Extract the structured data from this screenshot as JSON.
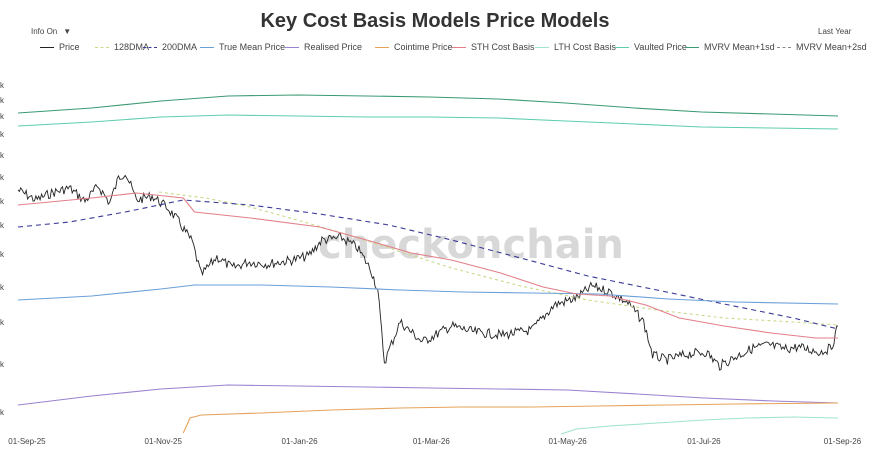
{
  "header": {
    "title": "Key Cost Basis Models Price Models"
  },
  "controls": {
    "info_label": "Info On",
    "range_label": "Last Year"
  },
  "watermark": "checkonchain",
  "chart_data": {
    "type": "line",
    "x_start": "2025-08-28",
    "x_end": "2026-08-30",
    "x_ticks": [
      {
        "date": "2025-09-01",
        "label": "01-Sep-25"
      },
      {
        "date": "2025-11-01",
        "label": "01-Nov-25"
      },
      {
        "date": "2026-01-01",
        "label": "01-Jan-26"
      },
      {
        "date": "2026-03-01",
        "label": "01-Mar-26"
      },
      {
        "date": "2026-05-01",
        "label": "01-May-26"
      },
      {
        "date": "2026-07-01",
        "label": "01-Jul-26"
      },
      {
        "date": "2026-09-01",
        "label": "01-Sep-26"
      }
    ],
    "y_ticks": [
      "k",
      "k",
      "k",
      "k",
      "k",
      "k",
      "k",
      "k",
      "k",
      "k",
      "k",
      "k",
      "k"
    ],
    "series": [
      {
        "name": "Price",
        "color": "#222222",
        "dash": "solid",
        "noise": 2.2,
        "points": [
          [
            "2025-08-28",
            190
          ],
          [
            "2025-09-05",
            200
          ],
          [
            "2025-09-12",
            193
          ],
          [
            "2025-09-20",
            188
          ],
          [
            "2025-09-27",
            201
          ],
          [
            "2025-10-03",
            186
          ],
          [
            "2025-10-08",
            203
          ],
          [
            "2025-10-12",
            178
          ],
          [
            "2025-10-15",
            172
          ],
          [
            "2025-10-20",
            200
          ],
          [
            "2025-10-27",
            196
          ],
          [
            "2025-11-03",
            208
          ],
          [
            "2025-11-08",
            222
          ],
          [
            "2025-11-14",
            242
          ],
          [
            "2025-11-18",
            275
          ],
          [
            "2025-11-25",
            257
          ],
          [
            "2025-12-02",
            268
          ],
          [
            "2025-12-09",
            262
          ],
          [
            "2025-12-18",
            264
          ],
          [
            "2025-12-29",
            260
          ],
          [
            "2026-01-05",
            256
          ],
          [
            "2026-01-11",
            240
          ],
          [
            "2026-01-20",
            238
          ],
          [
            "2026-01-27",
            248
          ],
          [
            "2026-02-02",
            270
          ],
          [
            "2026-02-05",
            290
          ],
          [
            "2026-02-08",
            362
          ],
          [
            "2026-02-15",
            322
          ],
          [
            "2026-02-25",
            342
          ],
          [
            "2026-03-10",
            326
          ],
          [
            "2026-03-20",
            332
          ],
          [
            "2026-04-02",
            335
          ],
          [
            "2026-04-15",
            330
          ],
          [
            "2026-04-25",
            305
          ],
          [
            "2026-05-05",
            298
          ],
          [
            "2026-05-12",
            286
          ],
          [
            "2026-05-20",
            292
          ],
          [
            "2026-05-28",
            303
          ],
          [
            "2026-06-04",
            322
          ],
          [
            "2026-06-08",
            355
          ],
          [
            "2026-06-14",
            360
          ],
          [
            "2026-06-24",
            354
          ],
          [
            "2026-07-02",
            352
          ],
          [
            "2026-07-08",
            366
          ],
          [
            "2026-07-15",
            357
          ],
          [
            "2026-07-23",
            348
          ],
          [
            "2026-07-30",
            345
          ],
          [
            "2026-08-06",
            349
          ],
          [
            "2026-08-12",
            347
          ],
          [
            "2026-08-22",
            352
          ],
          [
            "2026-08-27",
            348
          ],
          [
            "2026-08-30",
            326
          ]
        ]
      },
      {
        "name": "128DMA",
        "color": "#c9d98a",
        "dash": "3,3",
        "noise": 0,
        "points": [
          [
            "2025-10-30",
            192
          ],
          [
            "2025-11-20",
            198
          ],
          [
            "2025-12-10",
            207
          ],
          [
            "2025-12-31",
            220
          ],
          [
            "2026-01-20",
            233
          ],
          [
            "2026-02-10",
            248
          ],
          [
            "2026-03-10",
            268
          ],
          [
            "2026-04-10",
            286
          ],
          [
            "2026-05-10",
            300
          ],
          [
            "2026-06-10",
            310
          ],
          [
            "2026-07-10",
            318
          ],
          [
            "2026-08-10",
            322
          ],
          [
            "2026-08-30",
            325
          ]
        ]
      },
      {
        "name": "200DMA",
        "color": "#3a3a99",
        "dash": "5,4",
        "noise": 0,
        "points": [
          [
            "2025-08-28",
            227
          ],
          [
            "2025-09-20",
            222
          ],
          [
            "2025-10-15",
            212
          ],
          [
            "2025-11-10",
            200
          ],
          [
            "2025-12-10",
            205
          ],
          [
            "2026-01-10",
            214
          ],
          [
            "2026-02-10",
            225
          ],
          [
            "2026-03-10",
            240
          ],
          [
            "2026-04-10",
            258
          ],
          [
            "2026-05-10",
            276
          ],
          [
            "2026-06-10",
            290
          ],
          [
            "2026-07-10",
            304
          ],
          [
            "2026-08-10",
            318
          ],
          [
            "2026-08-30",
            329
          ]
        ]
      },
      {
        "name": "True Mean Price",
        "color": "#6a9fd8",
        "dash": "solid",
        "noise": 0,
        "points": [
          [
            "2025-08-28",
            300
          ],
          [
            "2025-09-30",
            296
          ],
          [
            "2025-10-31",
            289
          ],
          [
            "2025-11-15",
            285
          ],
          [
            "2025-12-15",
            285
          ],
          [
            "2026-01-15",
            287
          ],
          [
            "2026-02-15",
            290
          ],
          [
            "2026-03-15",
            292
          ],
          [
            "2026-04-15",
            293
          ],
          [
            "2026-05-15",
            294
          ],
          [
            "2026-06-15",
            299
          ],
          [
            "2026-07-15",
            302
          ],
          [
            "2026-08-30",
            304
          ]
        ]
      },
      {
        "name": "Realised Price",
        "color": "#9a82d0",
        "dash": "solid",
        "noise": 0,
        "points": [
          [
            "2025-08-28",
            405
          ],
          [
            "2025-09-30",
            396
          ],
          [
            "2025-10-31",
            389
          ],
          [
            "2025-11-30",
            385
          ],
          [
            "2025-12-31",
            386
          ],
          [
            "2026-01-31",
            387
          ],
          [
            "2026-03-01",
            388
          ],
          [
            "2026-04-01",
            389
          ],
          [
            "2026-05-01",
            390
          ],
          [
            "2026-06-01",
            394
          ],
          [
            "2026-07-01",
            398
          ],
          [
            "2026-08-01",
            401
          ],
          [
            "2026-08-30",
            403
          ]
        ]
      },
      {
        "name": "Cointime Price",
        "color": "#e6a25a",
        "dash": "solid",
        "noise": 0,
        "points": [
          [
            "2025-11-10",
            433
          ],
          [
            "2025-11-13",
            418
          ],
          [
            "2025-11-18",
            415
          ],
          [
            "2025-12-15",
            413
          ],
          [
            "2026-01-15",
            410
          ],
          [
            "2026-02-15",
            408
          ],
          [
            "2026-03-15",
            407
          ],
          [
            "2026-04-15",
            407
          ],
          [
            "2026-05-15",
            406
          ],
          [
            "2026-06-15",
            405
          ],
          [
            "2026-07-15",
            404
          ],
          [
            "2026-08-30",
            403
          ]
        ]
      },
      {
        "name": "STH Cost Basis",
        "color": "#e27f89",
        "dash": "solid",
        "noise": 0,
        "points": [
          [
            "2025-08-28",
            205
          ],
          [
            "2025-09-30",
            198
          ],
          [
            "2025-10-20",
            193
          ],
          [
            "2025-11-10",
            198
          ],
          [
            "2025-11-15",
            212
          ],
          [
            "2025-12-10",
            218
          ],
          [
            "2026-01-10",
            227
          ],
          [
            "2026-01-31",
            240
          ],
          [
            "2026-02-20",
            253
          ],
          [
            "2026-03-10",
            260
          ],
          [
            "2026-04-01",
            273
          ],
          [
            "2026-04-20",
            287
          ],
          [
            "2026-05-05",
            294
          ],
          [
            "2026-05-20",
            296
          ],
          [
            "2026-06-05",
            305
          ],
          [
            "2026-06-20",
            318
          ],
          [
            "2026-07-10",
            326
          ],
          [
            "2026-07-31",
            333
          ],
          [
            "2026-08-20",
            338
          ],
          [
            "2026-08-30",
            338
          ]
        ]
      },
      {
        "name": "LTH Cost Basis",
        "color": "#9fe3cf",
        "dash": "solid",
        "noise": 0,
        "points": [
          [
            "2026-04-28",
            434
          ],
          [
            "2026-05-05",
            429
          ],
          [
            "2026-05-20",
            426
          ],
          [
            "2026-06-10",
            423
          ],
          [
            "2026-07-01",
            420
          ],
          [
            "2026-07-20",
            418
          ],
          [
            "2026-08-10",
            417
          ],
          [
            "2026-08-30",
            418
          ]
        ]
      },
      {
        "name": "Vaulted Price",
        "color": "#5ecdb0",
        "dash": "solid",
        "noise": 0,
        "points": [
          [
            "2025-08-28",
            126
          ],
          [
            "2025-09-30",
            122
          ],
          [
            "2025-10-31",
            117
          ],
          [
            "2025-11-30",
            115
          ],
          [
            "2025-12-31",
            116
          ],
          [
            "2026-01-31",
            117
          ],
          [
            "2026-02-28",
            117
          ],
          [
            "2026-03-31",
            118
          ],
          [
            "2026-04-30",
            121
          ],
          [
            "2026-05-31",
            124
          ],
          [
            "2026-06-30",
            127
          ],
          [
            "2026-07-31",
            128
          ],
          [
            "2026-08-30",
            129
          ]
        ]
      },
      {
        "name": "MVRV Mean+1sd",
        "color": "#3a9a72",
        "dash": "solid",
        "noise": 0,
        "points": [
          [
            "2025-08-28",
            113
          ],
          [
            "2025-09-30",
            108
          ],
          [
            "2025-10-31",
            101
          ],
          [
            "2025-11-30",
            96
          ],
          [
            "2025-12-31",
            95
          ],
          [
            "2026-01-31",
            96
          ],
          [
            "2026-02-28",
            97
          ],
          [
            "2026-03-31",
            99
          ],
          [
            "2026-04-30",
            103
          ],
          [
            "2026-05-31",
            108
          ],
          [
            "2026-06-30",
            112
          ],
          [
            "2026-07-31",
            114
          ],
          [
            "2026-08-30",
            116
          ]
        ]
      },
      {
        "name": "MVRV Mean+2sd",
        "color": "#888888",
        "dash": "5,4",
        "noise": 0,
        "points": []
      }
    ]
  }
}
